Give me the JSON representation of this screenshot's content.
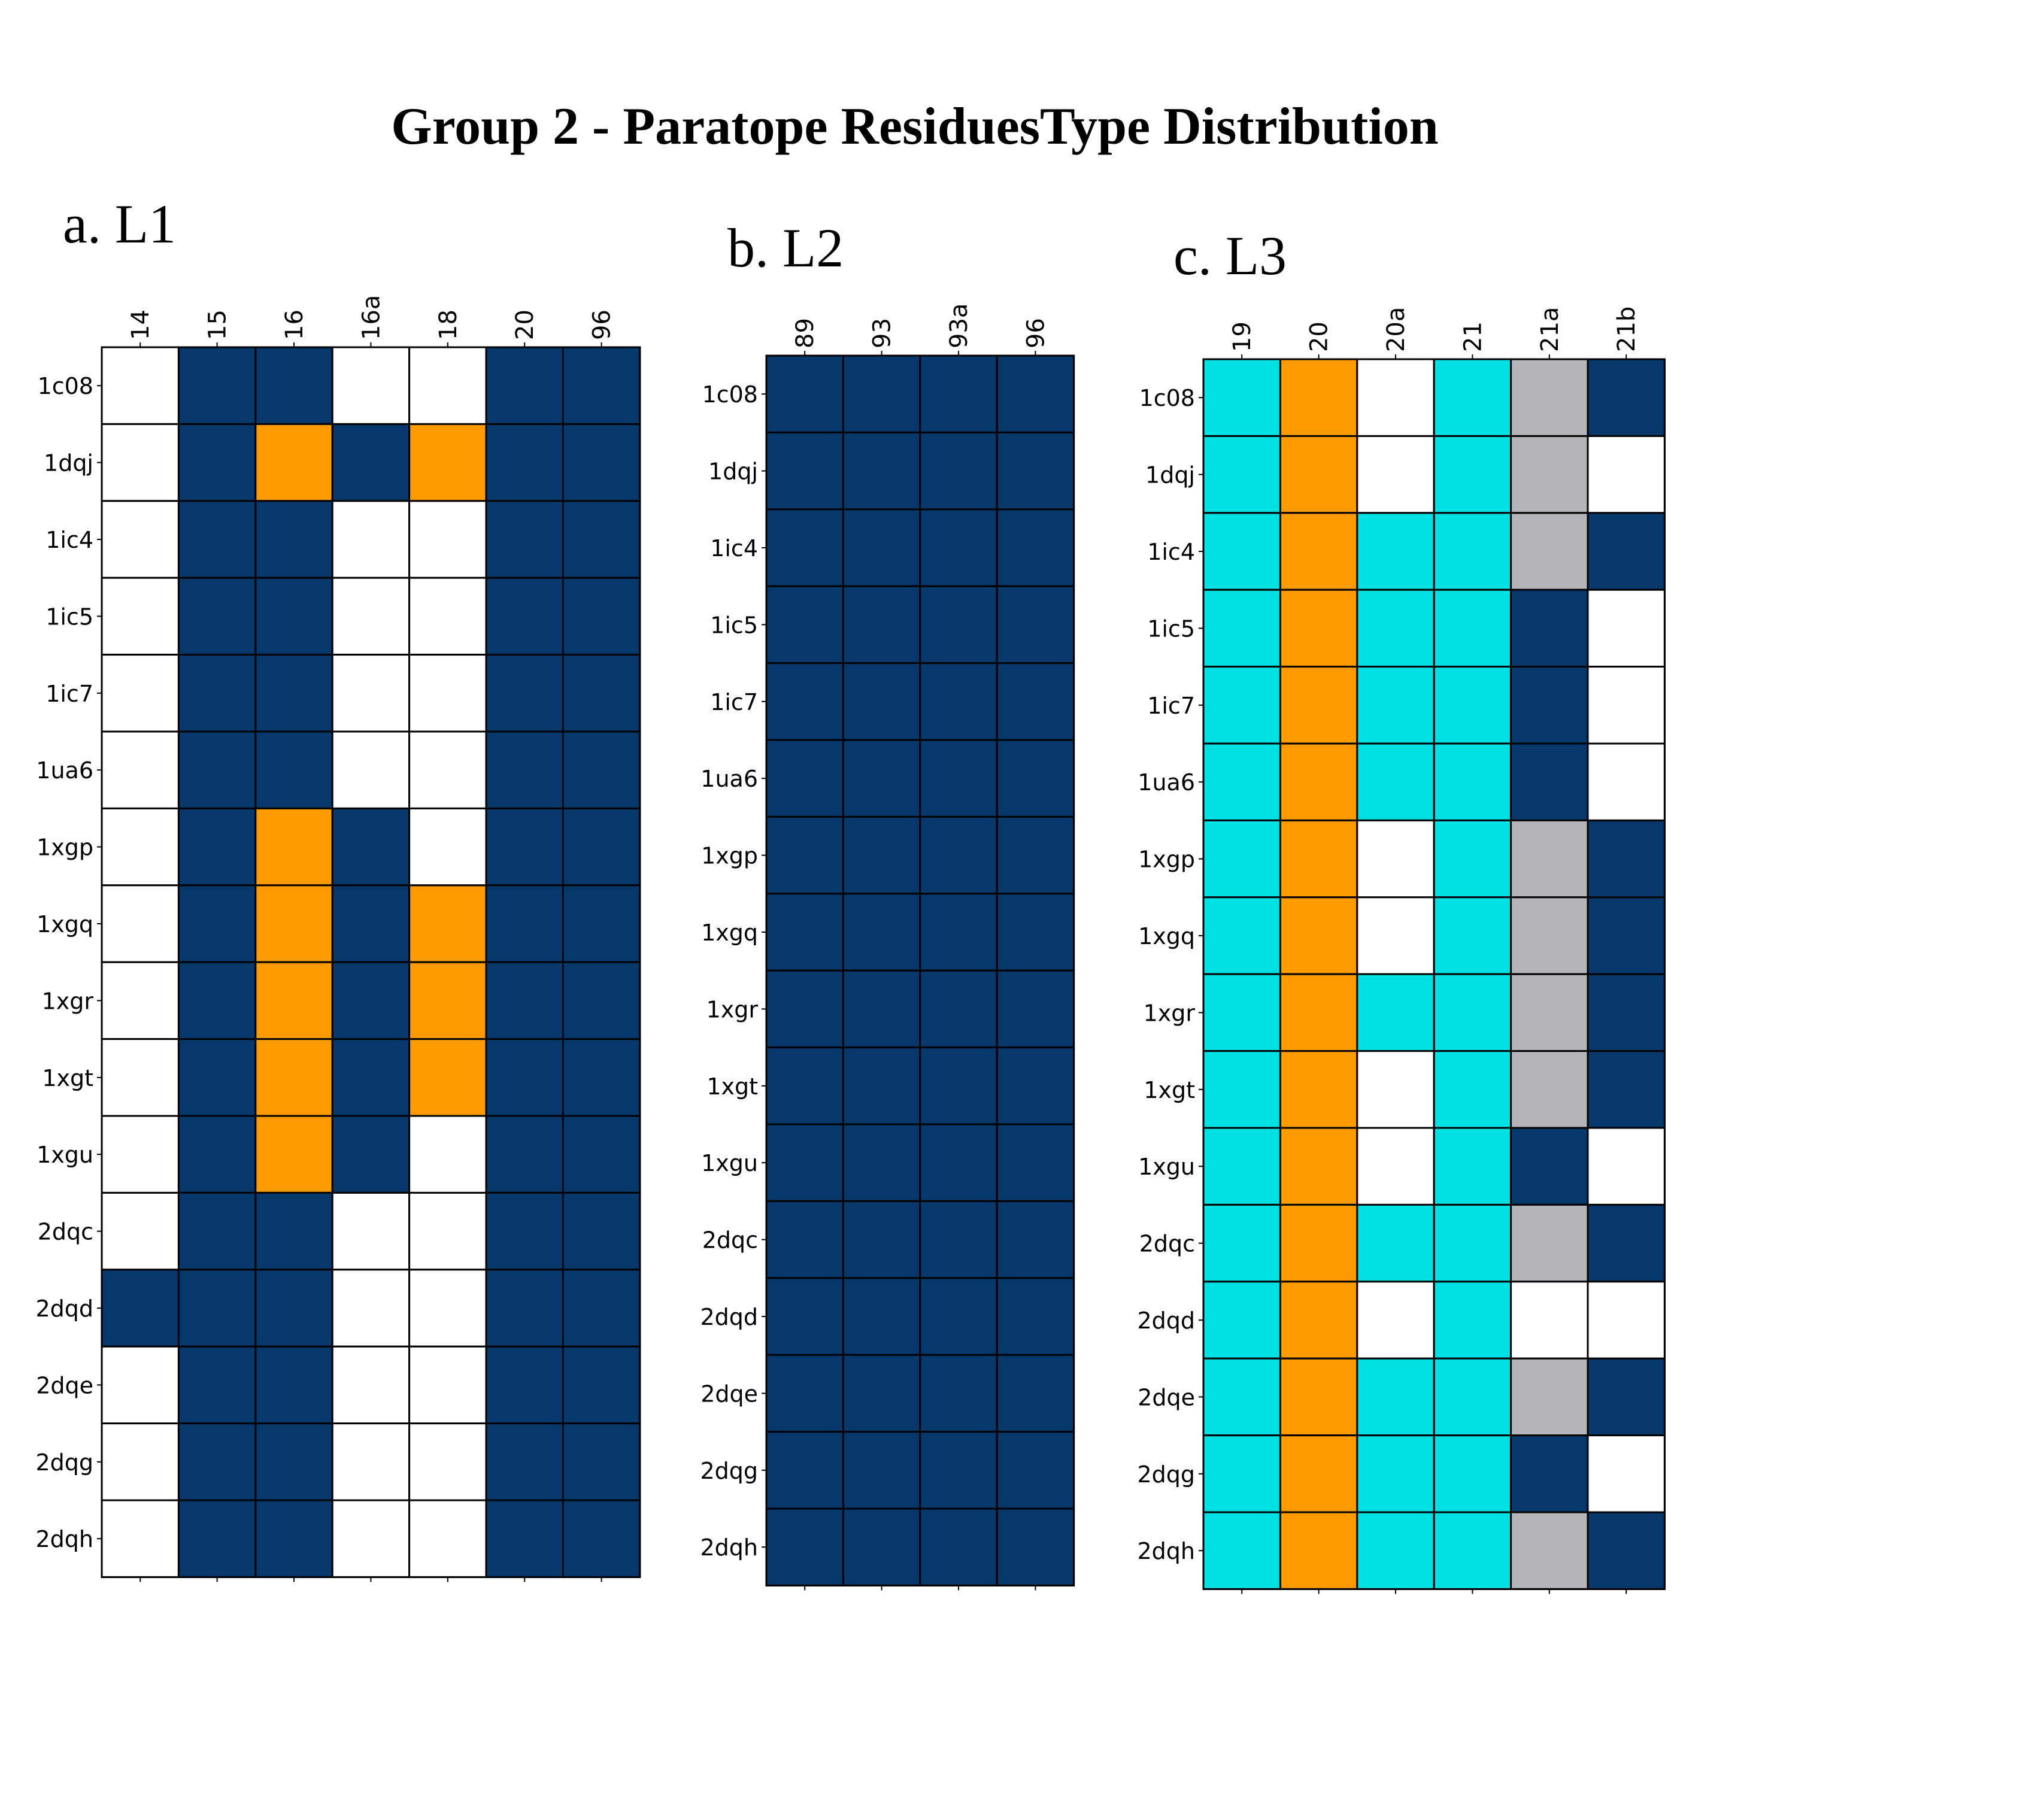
{
  "title": "Group 2 - Paratope ResiduesType Distribution",
  "colors": {
    "N": "#ffffff",
    "B": "#06386b",
    "O": "#fd9a00",
    "C": "#00e1e3",
    "G": "#b5b4b9",
    "grid": "#000000"
  },
  "chart_data": [
    {
      "type": "heatmap",
      "panel_label": "a. L1",
      "columns": [
        "14",
        "15",
        "16",
        "16a",
        "18",
        "20",
        "96"
      ],
      "rows": [
        "1c08",
        "1dqj",
        "1ic4",
        "1ic5",
        "1ic7",
        "1ua6",
        "1xgp",
        "1xgq",
        "1xgr",
        "1xgt",
        "1xgu",
        "2dqc",
        "2dqd",
        "2dqe",
        "2dqg",
        "2dqh"
      ],
      "cells": [
        "NBBNNBB",
        "NBOBOBB",
        "NBBNNBB",
        "NBBNNBB",
        "NBBNNBB",
        "NBBNNBB",
        "NBOBNBB",
        "NBOBOBB",
        "NBOBOBB",
        "NBOBOBB",
        "NBOBNBB",
        "NBBNNBB",
        "BBBNNBB",
        "NBBNNBB",
        "NBBNNBB",
        "NBBNNBB"
      ]
    },
    {
      "type": "heatmap",
      "panel_label": "b. L2",
      "columns": [
        "89",
        "93",
        "93a",
        "96"
      ],
      "rows": [
        "1c08",
        "1dqj",
        "1ic4",
        "1ic5",
        "1ic7",
        "1ua6",
        "1xgp",
        "1xgq",
        "1xgr",
        "1xgt",
        "1xgu",
        "2dqc",
        "2dqd",
        "2dqe",
        "2dqg",
        "2dqh"
      ],
      "cells": [
        "BBBB",
        "BBBB",
        "BBBB",
        "BBBB",
        "BBBB",
        "BBBB",
        "BBBB",
        "BBBB",
        "BBBB",
        "BBBB",
        "BBBB",
        "BBBB",
        "BBBB",
        "BBBB",
        "BBBB",
        "BBBB"
      ]
    },
    {
      "type": "heatmap",
      "panel_label": "c. L3",
      "columns": [
        "19",
        "20",
        "20a",
        "21",
        "21a",
        "21b"
      ],
      "rows": [
        "1c08",
        "1dqj",
        "1ic4",
        "1ic5",
        "1ic7",
        "1ua6",
        "1xgp",
        "1xgq",
        "1xgr",
        "1xgt",
        "1xgu",
        "2dqc",
        "2dqd",
        "2dqe",
        "2dqg",
        "2dqh"
      ],
      "cells": [
        "CONCGB",
        "CONCGN",
        "COCCGB",
        "COCCBN",
        "COCCBN",
        "COCCBN",
        "CONCGB",
        "CONCGB",
        "COCCGB",
        "CONCGB",
        "CONCBN",
        "COCCGB",
        "CONCNN",
        "COCCGB",
        "COCCBN",
        "COCCGB"
      ]
    }
  ]
}
